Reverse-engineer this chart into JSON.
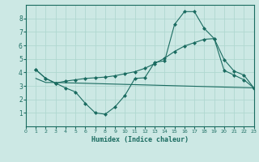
{
  "title": "",
  "xlabel": "Humidex (Indice chaleur)",
  "xlim": [
    0,
    23
  ],
  "ylim": [
    0,
    9
  ],
  "yticks": [
    1,
    2,
    3,
    4,
    5,
    6,
    7,
    8
  ],
  "xticks": [
    0,
    1,
    2,
    3,
    4,
    5,
    6,
    7,
    8,
    9,
    10,
    11,
    12,
    13,
    14,
    15,
    16,
    17,
    18,
    19,
    20,
    21,
    22,
    23
  ],
  "bg_color": "#cce8e4",
  "grid_color": "#b0d8d0",
  "line_color": "#1a6b60",
  "line1_x": [
    1,
    2,
    3,
    4,
    5,
    6,
    7,
    8,
    9,
    10,
    11,
    12,
    13,
    14,
    15,
    16,
    17,
    18,
    19,
    20,
    21,
    22,
    23
  ],
  "line1_y": [
    4.2,
    3.55,
    3.2,
    2.85,
    2.55,
    1.7,
    1.0,
    0.9,
    1.45,
    2.3,
    3.55,
    3.6,
    4.75,
    4.85,
    7.55,
    8.5,
    8.5,
    7.25,
    6.5,
    4.95,
    4.1,
    3.8,
    2.85
  ],
  "line2_x": [
    1,
    2,
    3,
    4,
    5,
    6,
    7,
    8,
    9,
    10,
    11,
    12,
    13,
    14,
    15,
    16,
    17,
    18,
    19,
    20,
    21,
    22,
    23
  ],
  "line2_y": [
    4.2,
    3.55,
    3.2,
    3.35,
    3.45,
    3.55,
    3.6,
    3.65,
    3.75,
    3.9,
    4.05,
    4.3,
    4.65,
    5.05,
    5.55,
    5.95,
    6.2,
    6.45,
    6.5,
    4.15,
    3.8,
    3.45,
    2.85
  ],
  "line3_x": [
    1,
    2,
    3,
    23
  ],
  "line3_y": [
    3.55,
    3.25,
    3.25,
    2.85
  ]
}
